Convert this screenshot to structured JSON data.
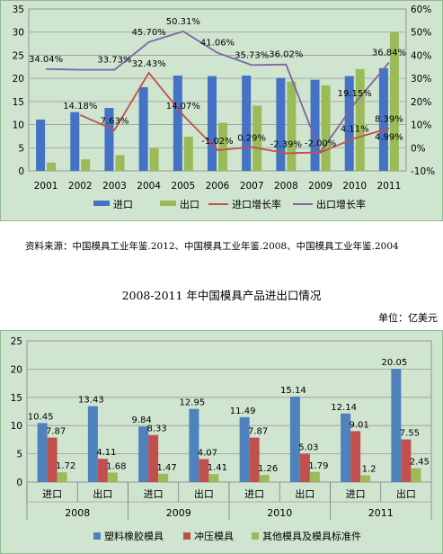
{
  "source_note": "资料来源：中国模具工业年鉴.2012、中国模具工业年鉴.2008、中国模具工业年鉴.2004",
  "chart2_title": "2008-2011 年中国模具产品进出口情况",
  "unit_label": "单位：亿美元",
  "colors": {
    "import": "#4472c4",
    "export": "#9bbb59",
    "import_growth": "#c0504d",
    "export_growth": "#8064a2",
    "plastic": "#4f81bd",
    "stamping": "#c0504d",
    "other": "#9bbb59",
    "plot_bg": "#cfe5cf",
    "frame": "#8fb98f"
  },
  "chart_data": [
    {
      "type": "bar",
      "categories": [
        "2001",
        "2002",
        "2003",
        "2004",
        "2005",
        "2006",
        "2007",
        "2008",
        "2009",
        "2010",
        "2011"
      ],
      "ylim": [
        0,
        35
      ],
      "yticks": [
        "0",
        "5",
        "10",
        "15",
        "20",
        "25",
        "30",
        "35"
      ],
      "y2lim": [
        -10,
        60
      ],
      "y2ticks": [
        "-10%",
        "0%",
        "10%",
        "20%",
        "30%",
        "40%",
        "50%",
        "60%"
      ],
      "series": [
        {
          "name": "进口",
          "kind": "bar",
          "axis": "left",
          "values": [
            11.1,
            12.7,
            13.6,
            18.1,
            20.6,
            20.5,
            20.6,
            20.1,
            19.7,
            20.5,
            22.2
          ]
        },
        {
          "name": "出口",
          "kind": "bar",
          "axis": "left",
          "values": [
            1.8,
            2.5,
            3.4,
            4.9,
            7.4,
            10.4,
            14.1,
            19.3,
            18.5,
            22.0,
            30.0
          ]
        },
        {
          "name": "进口增长率",
          "kind": "line",
          "axis": "right",
          "values": [
            null,
            14.18,
            7.63,
            32.43,
            14.07,
            -1.02,
            0.29,
            -2.39,
            -2.0,
            4.11,
            8.39
          ],
          "labels": [
            "",
            "14.18%",
            "7.63%",
            "32.43%",
            "14.07%",
            "-1.02%",
            "0.29%",
            "-2.39%",
            "-2.00%",
            "4.11%",
            "8.39%"
          ]
        },
        {
          "name": "出口增长率",
          "kind": "line",
          "axis": "right",
          "values": [
            34.04,
            33.73,
            33.73,
            45.7,
            50.31,
            41.06,
            35.73,
            36.02,
            -2.0,
            19.15,
            36.84
          ],
          "labels": [
            "34.04%",
            "",
            "33.73%",
            "45.70%",
            "50.31%",
            "41.06%",
            "35.73%",
            "36.02%",
            "",
            "19.15%",
            "36.84%"
          ]
        }
      ],
      "extra_label": "4.99%"
    },
    {
      "type": "bar",
      "groups": [
        "2008",
        "2009",
        "2010",
        "2011"
      ],
      "categories": [
        "进口",
        "出口",
        "进口",
        "出口",
        "进口",
        "出口",
        "进口",
        "出口"
      ],
      "ylim": [
        0,
        25
      ],
      "yticks": [
        "0",
        "5",
        "10",
        "15",
        "20",
        "25"
      ],
      "series": [
        {
          "name": "塑料橡胶模具",
          "values": [
            10.45,
            13.43,
            9.84,
            12.95,
            11.49,
            15.14,
            12.14,
            20.05
          ],
          "labels": [
            "10.45",
            "13.43",
            "9.84",
            "12.95",
            "11.49",
            "15.14",
            "12.14",
            "20.05"
          ]
        },
        {
          "name": "冲压模具",
          "values": [
            7.87,
            4.11,
            8.33,
            4.07,
            7.87,
            5.03,
            9.01,
            7.55
          ],
          "labels": [
            "7.87",
            "4.11",
            "8.33",
            "4.07",
            "7.87",
            "5.03",
            "9.01",
            "7.55"
          ]
        },
        {
          "name": "其他模具及模具标准件",
          "values": [
            1.72,
            1.68,
            1.47,
            1.41,
            1.26,
            1.79,
            1.2,
            2.45
          ],
          "labels": [
            "1.72",
            "1.68",
            "1.47",
            "1.41",
            "1.26",
            "1.79",
            "1.2",
            "2.45"
          ]
        }
      ]
    }
  ]
}
